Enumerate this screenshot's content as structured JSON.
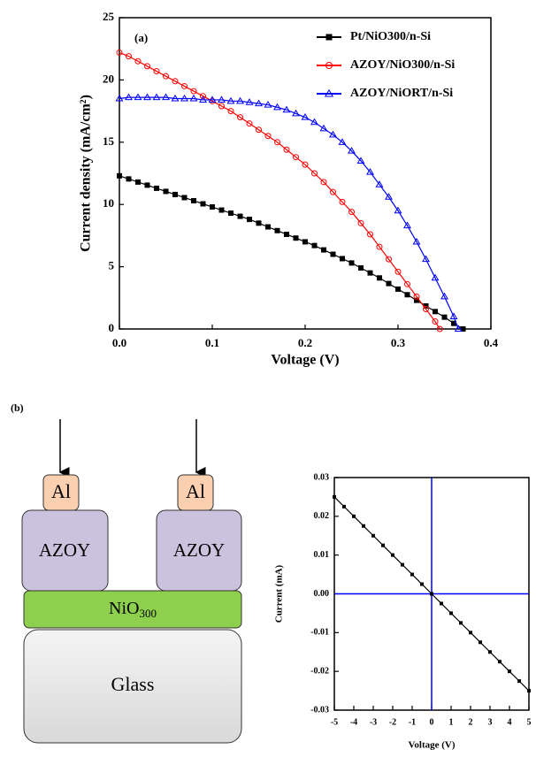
{
  "chart_data": [
    {
      "type": "line",
      "annotation": "(a)",
      "x_label": "Voltage (V)",
      "y_label": "Current density (mA/cm²)",
      "xlim": [
        0,
        0.4
      ],
      "xticks": [
        {
          "value": 0,
          "label": "0.0"
        },
        0.1,
        0.2,
        0.3,
        0.4
      ],
      "ylim": [
        0,
        25
      ],
      "yticks": [
        0,
        5,
        10,
        15,
        20,
        25
      ],
      "legend": "top-right",
      "series": [
        {
          "name": "Pt/NiO300/n-Si",
          "color": "#000000",
          "marker": "square",
          "x": [
            0,
            0.01,
            0.02,
            0.03,
            0.04,
            0.05,
            0.06,
            0.07,
            0.08,
            0.09,
            0.1,
            0.11,
            0.12,
            0.13,
            0.14,
            0.15,
            0.16,
            0.17,
            0.18,
            0.19,
            0.2,
            0.21,
            0.22,
            0.23,
            0.24,
            0.25,
            0.26,
            0.27,
            0.28,
            0.29,
            0.3,
            0.31,
            0.32,
            0.33,
            0.34,
            0.35,
            0.36,
            0.37
          ],
          "values": [
            12.3,
            12.05,
            11.8,
            11.55,
            11.3,
            11.05,
            10.8,
            10.55,
            10.3,
            10.05,
            9.8,
            9.55,
            9.3,
            9.05,
            8.8,
            8.5,
            8.2,
            7.9,
            7.6,
            7.3,
            7.0,
            6.7,
            6.35,
            6.0,
            5.65,
            5.3,
            4.9,
            4.5,
            4.1,
            3.65,
            3.2,
            2.75,
            2.3,
            1.85,
            1.4,
            0.95,
            0.45,
            0
          ]
        },
        {
          "name": "AZOY/NiO300/n-Si",
          "color": "#ff0000",
          "marker": "circle",
          "x": [
            0,
            0.01,
            0.02,
            0.03,
            0.04,
            0.05,
            0.06,
            0.07,
            0.08,
            0.09,
            0.1,
            0.11,
            0.12,
            0.13,
            0.14,
            0.15,
            0.16,
            0.17,
            0.18,
            0.19,
            0.2,
            0.21,
            0.22,
            0.23,
            0.24,
            0.25,
            0.26,
            0.27,
            0.28,
            0.29,
            0.3,
            0.31,
            0.32,
            0.33,
            0.34,
            0.345
          ],
          "values": [
            22.2,
            21.9,
            21.5,
            21.1,
            20.7,
            20.3,
            19.9,
            19.5,
            19.1,
            18.7,
            18.3,
            17.9,
            17.5,
            17.0,
            16.5,
            16.0,
            15.5,
            15.0,
            14.4,
            13.8,
            13.2,
            12.5,
            11.8,
            11.0,
            10.2,
            9.4,
            8.5,
            7.6,
            6.6,
            5.6,
            4.6,
            3.6,
            2.6,
            1.6,
            0.6,
            0
          ]
        },
        {
          "name": "AZOY/NiORT/n-Si",
          "color": "#0000ff",
          "marker": "triangle",
          "x": [
            0,
            0.01,
            0.02,
            0.03,
            0.04,
            0.05,
            0.06,
            0.07,
            0.08,
            0.09,
            0.1,
            0.11,
            0.12,
            0.13,
            0.14,
            0.15,
            0.16,
            0.17,
            0.18,
            0.19,
            0.2,
            0.21,
            0.22,
            0.23,
            0.24,
            0.25,
            0.26,
            0.27,
            0.28,
            0.29,
            0.3,
            0.31,
            0.32,
            0.33,
            0.34,
            0.35,
            0.36,
            0.365
          ],
          "values": [
            18.5,
            18.6,
            18.6,
            18.6,
            18.6,
            18.6,
            18.5,
            18.5,
            18.5,
            18.4,
            18.4,
            18.4,
            18.3,
            18.3,
            18.2,
            18.1,
            18.0,
            17.8,
            17.6,
            17.3,
            17.0,
            16.6,
            16.1,
            15.6,
            15.0,
            14.3,
            13.5,
            12.6,
            11.6,
            10.6,
            9.5,
            8.3,
            7.0,
            5.6,
            4.1,
            2.6,
            1.0,
            0
          ]
        }
      ]
    },
    {
      "type": "line",
      "x_label": "Voltage (V)",
      "y_label": "Current (mA)",
      "xlim": [
        -5,
        5
      ],
      "xticks": [
        -5,
        -4,
        -3,
        -2,
        -1,
        0,
        1,
        2,
        3,
        4,
        5
      ],
      "ylim": [
        -0.03,
        0.03
      ],
      "yticks": [
        -0.03,
        -0.02,
        -0.01,
        {
          "value": 0,
          "label": "0.00"
        },
        0.01,
        0.02,
        0.03
      ],
      "reference_lines": {
        "x": 0,
        "y": 0,
        "color": "#0000ff"
      },
      "series": [
        {
          "color": "#000000",
          "marker": "square",
          "x": [
            -5,
            -4.5,
            -4,
            -3.5,
            -3,
            -2.5,
            -2,
            -1.5,
            -1,
            -0.5,
            0,
            0.5,
            1,
            1.5,
            2,
            2.5,
            3,
            3.5,
            4,
            4.5,
            5
          ],
          "values": [
            0.025,
            0.0225,
            0.02,
            0.0175,
            0.015,
            0.0125,
            0.01,
            0.0075,
            0.005,
            0.0025,
            0,
            -0.0025,
            -0.005,
            -0.0075,
            -0.01,
            -0.0125,
            -0.015,
            -0.0175,
            -0.02,
            -0.0225,
            -0.025
          ]
        }
      ]
    }
  ],
  "figure_label": "(b)",
  "diagram": {
    "contacts": [
      "Al",
      "Al"
    ],
    "electrodes": [
      "AZOY",
      "AZOY"
    ],
    "film": {
      "base": "NiO",
      "sub": "300"
    },
    "substrate": "Glass"
  }
}
